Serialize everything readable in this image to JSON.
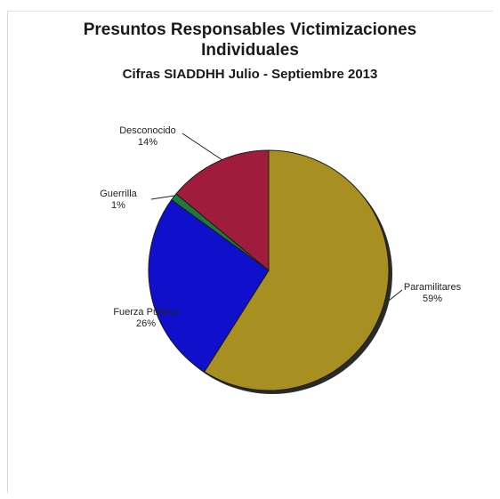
{
  "chart_data": {
    "type": "pie",
    "title_line1": "Presuntos Responsables Victimizaciones",
    "title_line2": "Individuales",
    "subtitle": "Cifras SIADDHH Julio - Septiembre 2013",
    "slices": [
      {
        "name": "Paramilitares",
        "value": 59,
        "pct_label": "59%",
        "color": "#a88f22"
      },
      {
        "name": "Fuerza Pública",
        "value": 26,
        "pct_label": "26%",
        "color": "#0f0fcc"
      },
      {
        "name": "Guerrilla",
        "value": 1,
        "pct_label": "1%",
        "color": "#1f7a3a"
      },
      {
        "name": "Desconocido",
        "value": 14,
        "pct_label": "14%",
        "color": "#a01c3c"
      }
    ]
  }
}
